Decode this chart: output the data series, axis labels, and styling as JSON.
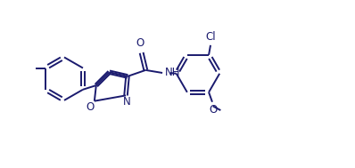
{
  "line_color": "#1a1a6e",
  "bg_color": "#ffffff",
  "line_width": 1.4,
  "font_size": 8.5,
  "xlim": [
    0,
    10
  ],
  "ylim": [
    0,
    4.8
  ]
}
